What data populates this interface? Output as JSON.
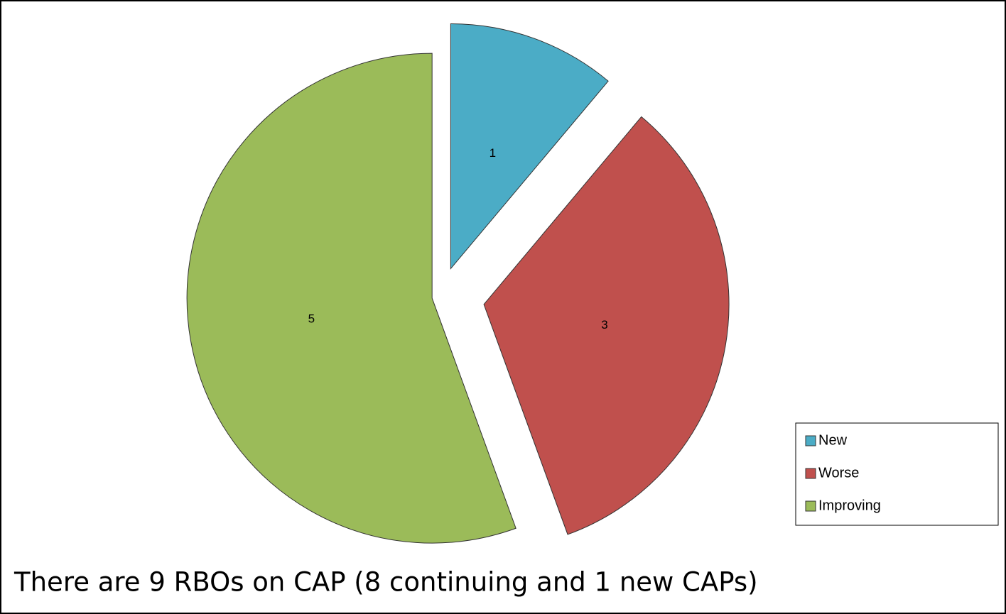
{
  "chart_data": {
    "type": "pie",
    "caption": "There are 9 RBOs on CAP (8 continuing and 1 new CAPs)",
    "categories": [
      "New",
      "Worse",
      "Improving"
    ],
    "values": [
      1,
      3,
      5
    ],
    "colors": [
      "#4bacc6",
      "#c0504d",
      "#9bbb59"
    ],
    "legend": "right"
  }
}
